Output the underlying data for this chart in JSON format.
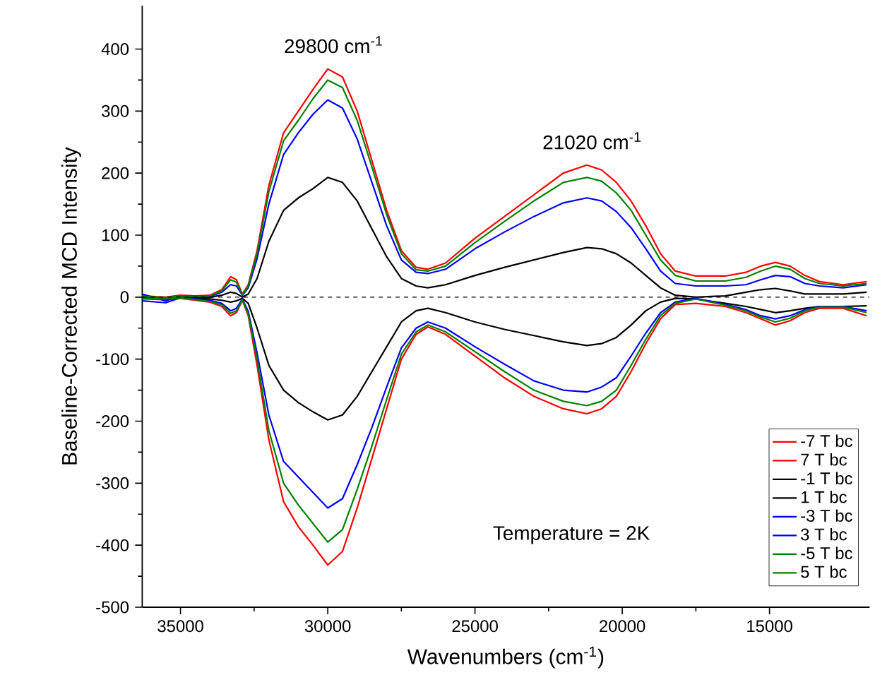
{
  "chart_data": {
    "type": "line",
    "xlabel": "Wavenumbers (cm$^{-1}$)",
    "ylabel": "Baseline-Corrected MCD Intensity",
    "x": [
      36300,
      35500,
      35000,
      34500,
      34000,
      33600,
      33300,
      33100,
      32900,
      32700,
      32400,
      32000,
      31500,
      31000,
      30500,
      30000,
      29500,
      29000,
      28500,
      28000,
      27500,
      27000,
      26600,
      26000,
      25000,
      24000,
      23000,
      22000,
      21200,
      20700,
      20200,
      19700,
      19200,
      18700,
      18200,
      17500,
      16500,
      15800,
      15300,
      14800,
      14300,
      13800,
      13300,
      12500,
      11700
    ],
    "series": [
      {
        "name": "-7 T bc",
        "color": "#ff0000",
        "values": [
          2,
          0,
          3,
          2,
          3,
          12,
          33,
          28,
          5,
          20,
          75,
          180,
          265,
          300,
          335,
          368,
          355,
          300,
          220,
          140,
          75,
          48,
          45,
          55,
          95,
          130,
          165,
          200,
          213,
          205,
          185,
          155,
          115,
          70,
          42,
          34,
          34,
          40,
          50,
          56,
          50,
          35,
          25,
          20,
          25
        ]
      },
      {
        "name": "7 T bc",
        "color": "#ff0000",
        "values": [
          -3,
          -4,
          -2,
          -5,
          -8,
          -15,
          -30,
          -25,
          -5,
          -30,
          -110,
          -230,
          -330,
          -370,
          -400,
          -432,
          -410,
          -340,
          -260,
          -180,
          -100,
          -60,
          -48,
          -60,
          -95,
          -130,
          -160,
          -180,
          -188,
          -180,
          -160,
          -120,
          -75,
          -35,
          -12,
          -10,
          -15,
          -25,
          -35,
          -45,
          -38,
          -25,
          -18,
          -18,
          -30
        ]
      },
      {
        "name": "-1 T bc",
        "color": "#000000",
        "values": [
          0,
          -2,
          1,
          0,
          0,
          3,
          8,
          6,
          0,
          5,
          30,
          90,
          140,
          160,
          175,
          193,
          185,
          155,
          110,
          65,
          30,
          18,
          15,
          20,
          35,
          48,
          60,
          72,
          80,
          78,
          70,
          55,
          35,
          15,
          3,
          0,
          2,
          8,
          12,
          14,
          10,
          5,
          5,
          5,
          8
        ]
      },
      {
        "name": "1 T bc",
        "color": "#000000",
        "values": [
          0,
          -1,
          0,
          -2,
          -3,
          -5,
          -8,
          -6,
          -2,
          -10,
          -50,
          -110,
          -150,
          -170,
          -185,
          -198,
          -190,
          -160,
          -120,
          -80,
          -40,
          -22,
          -18,
          -25,
          -40,
          -52,
          -62,
          -72,
          -78,
          -75,
          -65,
          -45,
          -22,
          -8,
          -2,
          -3,
          -10,
          -15,
          -20,
          -25,
          -22,
          -18,
          -15,
          -15,
          -14
        ]
      },
      {
        "name": "-3 T bc",
        "color": "#0000ff",
        "values": [
          5,
          -6,
          2,
          1,
          1,
          8,
          20,
          18,
          3,
          15,
          62,
          150,
          230,
          265,
          295,
          318,
          305,
          255,
          185,
          115,
          60,
          40,
          38,
          45,
          78,
          105,
          130,
          152,
          160,
          155,
          138,
          112,
          78,
          42,
          22,
          18,
          18,
          20,
          28,
          35,
          33,
          22,
          18,
          15,
          20
        ]
      },
      {
        "name": "3 T bc",
        "color": "#0000ff",
        "values": [
          -6,
          -9,
          -1,
          -3,
          -5,
          -10,
          -22,
          -18,
          -3,
          -23,
          -90,
          -190,
          -265,
          -290,
          -315,
          -340,
          -325,
          -270,
          -210,
          -145,
          -82,
          -50,
          -40,
          -50,
          -80,
          -108,
          -135,
          -150,
          -153,
          -145,
          -130,
          -95,
          -58,
          -25,
          -8,
          -2,
          -12,
          -20,
          -30,
          -35,
          -30,
          -20,
          -15,
          -15,
          -22
        ]
      },
      {
        "name": "-5 T bc",
        "color": "#008000",
        "values": [
          1,
          -1,
          2,
          1,
          2,
          10,
          28,
          24,
          4,
          18,
          70,
          170,
          252,
          285,
          320,
          350,
          338,
          285,
          210,
          133,
          70,
          44,
          42,
          50,
          88,
          122,
          155,
          185,
          193,
          187,
          168,
          140,
          100,
          60,
          35,
          26,
          26,
          32,
          42,
          50,
          45,
          30,
          22,
          18,
          22
        ]
      },
      {
        "name": "5 T bc",
        "color": "#008000",
        "values": [
          -2,
          -3,
          -1,
          -4,
          -7,
          -12,
          -26,
          -22,
          -4,
          -27,
          -100,
          -215,
          -300,
          -335,
          -365,
          -395,
          -375,
          -310,
          -240,
          -165,
          -92,
          -56,
          -45,
          -56,
          -88,
          -120,
          -150,
          -168,
          -175,
          -168,
          -150,
          -110,
          -68,
          -30,
          -10,
          -3,
          -13,
          -22,
          -32,
          -40,
          -34,
          -22,
          -16,
          -16,
          -25
        ]
      }
    ],
    "xlim": [
      36300,
      11600
    ],
    "ylim": [
      -500,
      470
    ],
    "xticks": [
      35000,
      30000,
      25000,
      20000,
      15000
    ],
    "yticks": [
      -500,
      -400,
      -300,
      -200,
      -100,
      0,
      100,
      200,
      300,
      400
    ],
    "ref_lines": [
      {
        "axis": "y",
        "value": 0,
        "color": "#000000",
        "line_style": "dashed"
      }
    ],
    "annotations": [
      {
        "text": "29800 cm$^{-1}$",
        "x": 29800,
        "y": 368
      },
      {
        "text": "21020 cm$^{-1}$",
        "x": 21020,
        "y": 213
      },
      "Temperature = 2K"
    ],
    "legend": "bottom right",
    "grid": false,
    "marker": "none",
    "line_style": "solid"
  }
}
